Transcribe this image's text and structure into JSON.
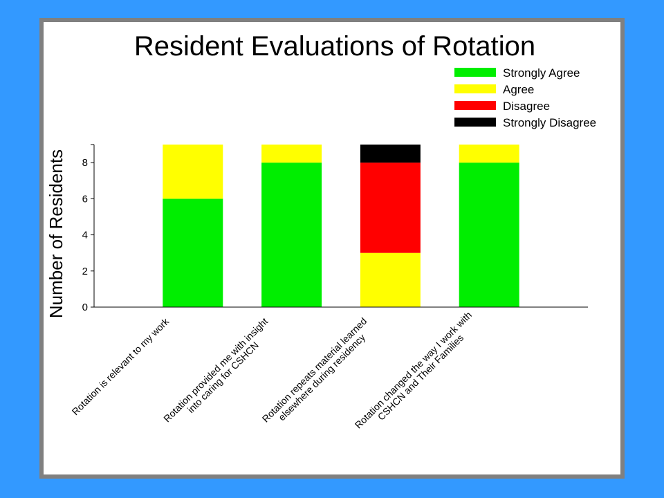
{
  "chart_data": {
    "type": "bar",
    "stacked": true,
    "title": "Resident Evaluations of Rotation",
    "ylabel": "Number of Residents",
    "xlabel": "",
    "ylim": [
      0,
      9
    ],
    "yticks": [
      0,
      2,
      4,
      6,
      8
    ],
    "grid": false,
    "legend_position": "top-right",
    "categories": [
      [
        "Rotation is relevant to my work"
      ],
      [
        "Rotation provided me with insight",
        "into caring for CSHCN"
      ],
      [
        "Rotation repeats material learned",
        "elsewhere during residency"
      ],
      [
        "Rotation changed the way I work with",
        "CSHCN and Their Families"
      ]
    ],
    "series": [
      {
        "name": "Strongly Agree",
        "color": "#00ee00",
        "values": [
          6,
          8,
          0,
          8
        ]
      },
      {
        "name": "Agree",
        "color": "#ffff00",
        "values": [
          3,
          1,
          3,
          1
        ]
      },
      {
        "name": "Disagree",
        "color": "#ff0000",
        "values": [
          0,
          0,
          5,
          0
        ]
      },
      {
        "name": "Strongly Disagree",
        "color": "#000000",
        "values": [
          0,
          0,
          1,
          0
        ]
      }
    ]
  }
}
